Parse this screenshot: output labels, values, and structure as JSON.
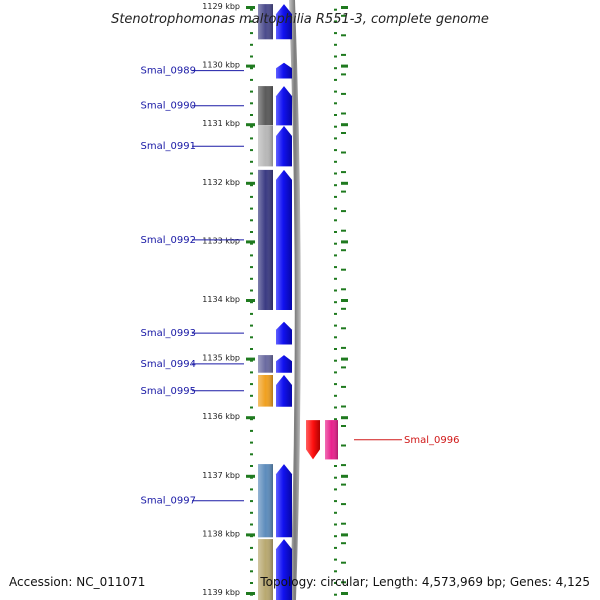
{
  "title": "Stenotrophomonas maltophilia R551-3, complete genome",
  "accession": "Accession: NC_011071",
  "summary": "Topology: circular; Length: 4,573,969 bp; Genes: 4,125",
  "ruler": {
    "start_kbp": 1129,
    "end_kbp": 1139,
    "ticks": [
      {
        "kbp": 1129,
        "label": "1129 kbp"
      },
      {
        "kbp": 1130,
        "label": "1130 kbp"
      },
      {
        "kbp": 1131,
        "label": "1131 kbp"
      },
      {
        "kbp": 1132,
        "label": "1132 kbp"
      },
      {
        "kbp": 1133,
        "label": "1133 kbp"
      },
      {
        "kbp": 1134,
        "label": "1134 kbp"
      },
      {
        "kbp": 1135,
        "label": "1135 kbp"
      },
      {
        "kbp": 1136,
        "label": "1136 kbp"
      },
      {
        "kbp": 1137,
        "label": "1137 kbp"
      },
      {
        "kbp": 1138,
        "label": "1138 kbp"
      },
      {
        "kbp": 1139,
        "label": "1139 kbp"
      }
    ]
  },
  "colors": {
    "cds_forward": "#1212f0",
    "cds_reverse": "#ff1010",
    "backbone": "#8a8a8a",
    "tick": "#1f7a1f",
    "label_left": "#1a1aa6",
    "label_right": "#d01818"
  },
  "features": [
    {
      "name": "",
      "strand": "+",
      "start": 1128.95,
      "end": 1129.55,
      "cog_color": "#4a4a8c"
    },
    {
      "name": "Smal_0989",
      "strand": "+",
      "start": 1129.95,
      "end": 1130.22,
      "cog_color": null
    },
    {
      "name": "Smal_0990",
      "strand": "+",
      "start": 1130.35,
      "end": 1131.02,
      "cog_color": "#5a5a5a"
    },
    {
      "name": "Smal_0991",
      "strand": "+",
      "start": 1131.03,
      "end": 1131.72,
      "cog_color": "#b8b8b8"
    },
    {
      "name": "Smal_0992",
      "strand": "+",
      "start": 1131.78,
      "end": 1134.17,
      "cog_color": "#3a3a82"
    },
    {
      "name": "Smal_0993",
      "strand": "+",
      "start": 1134.37,
      "end": 1134.76,
      "cog_color": null
    },
    {
      "name": "Smal_0994",
      "strand": "+",
      "start": 1134.94,
      "end": 1135.24,
      "cog_color": "#6a6aa0"
    },
    {
      "name": "Smal_0995",
      "strand": "+",
      "start": 1135.28,
      "end": 1135.82,
      "cog_color": "#f0a020"
    },
    {
      "name": "Smal_0996",
      "strand": "-",
      "start": 1136.05,
      "end": 1136.72,
      "cog_color": "#e8208c"
    },
    {
      "name": "Smal_0997",
      "strand": "+",
      "start": 1136.8,
      "end": 1138.05,
      "cog_color": "#5c8cbc"
    },
    {
      "name": "",
      "strand": "+",
      "start": 1138.08,
      "end": 1139.2,
      "cog_color": "#b8a870"
    }
  ]
}
